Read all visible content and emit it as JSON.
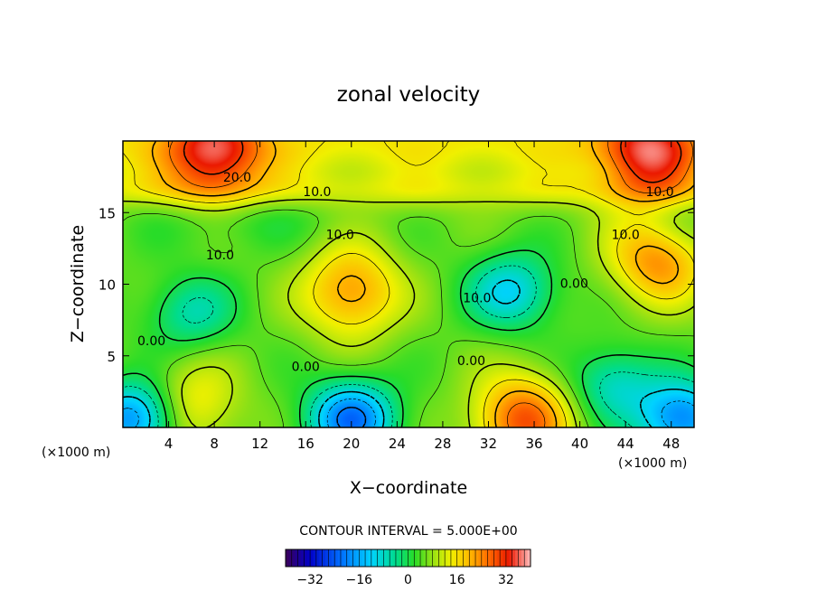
{
  "chart_data": {
    "type": "heatmap",
    "title": "zonal velocity",
    "xlabel": "X−coordinate",
    "ylabel": "Z−coordinate",
    "x_unit_left": "(×1000 m)",
    "x_unit_right": "(×1000 m)",
    "xlim": [
      0,
      50
    ],
    "ylim": [
      0,
      20
    ],
    "x_ticks": [
      4,
      8,
      12,
      16,
      20,
      24,
      28,
      32,
      36,
      40,
      44,
      48
    ],
    "y_ticks": [
      5,
      10,
      15
    ],
    "contour_interval_text": "CONTOUR INTERVAL = 5.000E+00",
    "colorbar": {
      "range": [
        -40,
        40
      ],
      "ticks": [
        -32,
        -16,
        0,
        16,
        32
      ]
    },
    "contour_labels": [
      {
        "text": "20.0",
        "x": 10,
        "z": 17.4
      },
      {
        "text": "10.0",
        "x": 17,
        "z": 16.4
      },
      {
        "text": "10.0",
        "x": 47,
        "z": 16.4
      },
      {
        "text": "10.0",
        "x": 19,
        "z": 13.4
      },
      {
        "text": "10.0",
        "x": 44,
        "z": 13.4
      },
      {
        "text": "10.0",
        "x": 8.5,
        "z": 12.0
      },
      {
        "text": "10.0",
        "x": 31,
        "z": 9.0
      },
      {
        "text": "0.00",
        "x": 39.5,
        "z": 10.0
      },
      {
        "text": "0.00",
        "x": 2.5,
        "z": 6.0
      },
      {
        "text": "0.00",
        "x": 16,
        "z": 4.2
      },
      {
        "text": "0.00",
        "x": 30.5,
        "z": 4.6
      }
    ],
    "features": [
      {
        "kind": "max",
        "x": 20,
        "z": 9.5,
        "value": 26
      },
      {
        "kind": "max",
        "x": 47,
        "z": 12,
        "value": 30
      },
      {
        "kind": "max",
        "x": 8,
        "z": 19,
        "value": 32
      },
      {
        "kind": "max",
        "x": 46,
        "z": 19,
        "value": 32
      },
      {
        "kind": "max",
        "x": 35,
        "z": 0.5,
        "value": 32
      },
      {
        "kind": "max",
        "x": 6,
        "z": 1.5,
        "value": 18
      },
      {
        "kind": "min",
        "x": 20,
        "z": 0.6,
        "value": -26
      },
      {
        "kind": "min",
        "x": 34,
        "z": 9.5,
        "value": -14
      },
      {
        "kind": "min",
        "x": 6,
        "z": 8,
        "value": -8
      },
      {
        "kind": "min",
        "x": 43,
        "z": 3,
        "value": -10
      },
      {
        "kind": "min",
        "x": 1,
        "z": 0.6,
        "value": -24
      },
      {
        "kind": "min",
        "x": 49,
        "z": 0.6,
        "value": -24
      },
      {
        "kind": "min",
        "x": 48,
        "z": 14,
        "value": -4
      }
    ],
    "grid": false
  }
}
